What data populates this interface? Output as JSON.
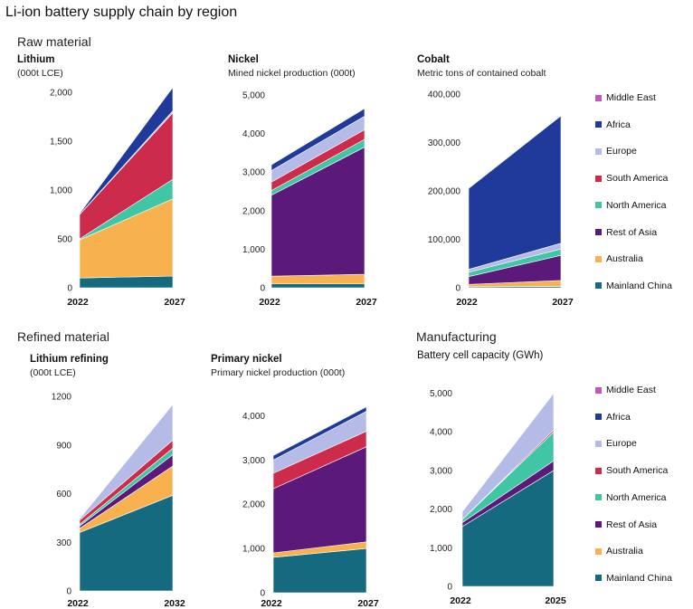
{
  "title": "Li-ion battery supply chain by region",
  "sections": {
    "raw": "Raw material",
    "refined": "Refined material",
    "manufacturing": "Manufacturing"
  },
  "legend": [
    {
      "name": "Middle East",
      "color": "#c157b8"
    },
    {
      "name": "Africa",
      "color": "#1f3a9b"
    },
    {
      "name": "Europe",
      "color": "#b3bbe6"
    },
    {
      "name": "South America",
      "color": "#cc2b4b"
    },
    {
      "name": "North America",
      "color": "#40c6a4"
    },
    {
      "name": "Rest of Asia",
      "color": "#5b1a7a"
    },
    {
      "name": "Australia",
      "color": "#f7b24f"
    },
    {
      "name": "Mainland China",
      "color": "#166a7f"
    }
  ],
  "chart_data": [
    {
      "type": "area",
      "title": "Lithium",
      "subtitle": "(000t LCE)",
      "x": [
        "2022",
        "2027"
      ],
      "ylim": [
        0,
        2000
      ],
      "yticks": [
        "0",
        "500",
        "1,000",
        "1,500",
        "2,000"
      ],
      "stacked": true,
      "series": [
        {
          "name": "Mainland China",
          "values": [
            100,
            120
          ]
        },
        {
          "name": "Australia",
          "values": [
            390,
            790
          ]
        },
        {
          "name": "Rest of Asia",
          "values": [
            0,
            0
          ]
        },
        {
          "name": "North America",
          "values": [
            10,
            200
          ]
        },
        {
          "name": "South America",
          "values": [
            250,
            680
          ]
        },
        {
          "name": "Europe",
          "values": [
            0,
            20
          ]
        },
        {
          "name": "Africa",
          "values": [
            10,
            240
          ]
        },
        {
          "name": "Middle East",
          "values": [
            0,
            0
          ]
        }
      ]
    },
    {
      "type": "area",
      "title": "Nickel",
      "subtitle": "Mined nickel production (000t)",
      "x": [
        "2022",
        "2027"
      ],
      "ylim": [
        0,
        5000
      ],
      "yticks": [
        "0",
        "1,000",
        "2,000",
        "3,000",
        "4,000",
        "5,000"
      ],
      "stacked": true,
      "series": [
        {
          "name": "Mainland China",
          "values": [
            100,
            100
          ]
        },
        {
          "name": "Australia",
          "values": [
            200,
            250
          ]
        },
        {
          "name": "Rest of Asia",
          "values": [
            2100,
            3300
          ]
        },
        {
          "name": "North America",
          "values": [
            120,
            200
          ]
        },
        {
          "name": "South America",
          "values": [
            220,
            250
          ]
        },
        {
          "name": "Europe",
          "values": [
            300,
            350
          ]
        },
        {
          "name": "Africa",
          "values": [
            150,
            200
          ]
        },
        {
          "name": "Middle East",
          "values": [
            0,
            0
          ]
        }
      ]
    },
    {
      "type": "area",
      "title": "Cobalt",
      "subtitle": "Metric tons of contained cobalt",
      "x": [
        "2022",
        "2027"
      ],
      "ylim": [
        0,
        400000
      ],
      "yticks": [
        "0",
        "100,000",
        "200,000",
        "300,000",
        "400,000"
      ],
      "stacked": true,
      "series": [
        {
          "name": "Mainland China",
          "values": [
            2000,
            3000
          ]
        },
        {
          "name": "Australia",
          "values": [
            5000,
            12000
          ]
        },
        {
          "name": "Rest of Asia",
          "values": [
            16000,
            52000
          ]
        },
        {
          "name": "North America",
          "values": [
            9000,
            13000
          ]
        },
        {
          "name": "South America",
          "values": [
            0,
            0
          ]
        },
        {
          "name": "Europe",
          "values": [
            6000,
            12000
          ]
        },
        {
          "name": "Africa",
          "values": [
            167000,
            263000
          ]
        },
        {
          "name": "Middle East",
          "values": [
            0,
            0
          ]
        }
      ]
    },
    {
      "type": "area",
      "title": "Lithium refining",
      "subtitle": "(000t LCE)",
      "x": [
        "2022",
        "2032"
      ],
      "ylim": [
        0,
        1200
      ],
      "yticks": [
        "0",
        "300",
        "600",
        "900",
        "1200"
      ],
      "stacked": true,
      "series": [
        {
          "name": "Mainland China",
          "values": [
            360,
            590
          ]
        },
        {
          "name": "Australia",
          "values": [
            25,
            180
          ]
        },
        {
          "name": "Rest of Asia",
          "values": [
            15,
            70
          ]
        },
        {
          "name": "North America",
          "values": [
            10,
            40
          ]
        },
        {
          "name": "South America",
          "values": [
            25,
            50
          ]
        },
        {
          "name": "Europe",
          "values": [
            10,
            220
          ]
        },
        {
          "name": "Africa",
          "values": [
            0,
            0
          ]
        },
        {
          "name": "Middle East",
          "values": [
            0,
            0
          ]
        }
      ]
    },
    {
      "type": "area",
      "title": "Primary nickel",
      "subtitle": "Primary nickel production (000t)",
      "x": [
        "2022",
        "2027"
      ],
      "ylim": [
        0,
        4500
      ],
      "yticks": [
        "0",
        "1,000",
        "2,000",
        "3,000",
        "4,000"
      ],
      "stacked": true,
      "series": [
        {
          "name": "Mainland China",
          "values": [
            800,
            1000
          ]
        },
        {
          "name": "Australia",
          "values": [
            100,
            150
          ]
        },
        {
          "name": "Rest of Asia",
          "values": [
            1450,
            2150
          ]
        },
        {
          "name": "North America",
          "values": [
            0,
            0
          ]
        },
        {
          "name": "South America",
          "values": [
            350,
            350
          ]
        },
        {
          "name": "Europe",
          "values": [
            300,
            450
          ]
        },
        {
          "name": "Africa",
          "values": [
            100,
            100
          ]
        },
        {
          "name": "Middle East",
          "values": [
            0,
            0
          ]
        }
      ]
    },
    {
      "type": "area",
      "title": "Battery cell capacity (GWh)",
      "subtitle": "",
      "x": [
        "2022",
        "2025"
      ],
      "ylim": [
        0,
        5200
      ],
      "yticks": [
        "0",
        "1,000",
        "2,000",
        "3,000",
        "4,000",
        "5,000"
      ],
      "stacked": true,
      "series": [
        {
          "name": "Mainland China",
          "values": [
            1550,
            3000
          ]
        },
        {
          "name": "Australia",
          "values": [
            0,
            0
          ]
        },
        {
          "name": "Rest of Asia",
          "values": [
            100,
            250
          ]
        },
        {
          "name": "North America",
          "values": [
            80,
            750
          ]
        },
        {
          "name": "South America",
          "values": [
            0,
            50
          ]
        },
        {
          "name": "Europe",
          "values": [
            200,
            950
          ]
        },
        {
          "name": "Africa",
          "values": [
            0,
            0
          ]
        },
        {
          "name": "Middle East",
          "values": [
            0,
            0
          ]
        }
      ]
    }
  ]
}
